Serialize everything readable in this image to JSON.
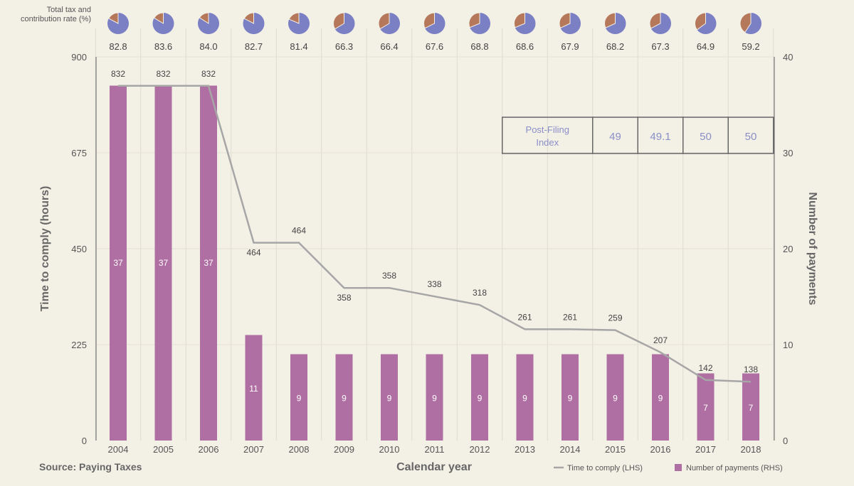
{
  "chart_data": {
    "type": "bar+line",
    "categories": [
      "2004",
      "2005",
      "2006",
      "2007",
      "2008",
      "2009",
      "2010",
      "2011",
      "2012",
      "2013",
      "2014",
      "2015",
      "2016",
      "2017",
      "2018"
    ],
    "series": [
      {
        "name": "Time to comply (LHS)",
        "type": "line",
        "axis": "left",
        "values": [
          832,
          832,
          832,
          464,
          464,
          358,
          358,
          338,
          318,
          261,
          261,
          259,
          207,
          142,
          138
        ]
      },
      {
        "name": "Number of payments (RHS)",
        "type": "bar",
        "axis": "right",
        "values": [
          37,
          37,
          37,
          11,
          9,
          9,
          9,
          9,
          9,
          9,
          9,
          9,
          9,
          7,
          7
        ]
      }
    ],
    "tax_rate": {
      "label": "Total tax and contribution rate (%)",
      "values": [
        82.8,
        83.6,
        84.0,
        82.7,
        81.4,
        66.3,
        66.4,
        67.6,
        68.8,
        68.6,
        67.9,
        68.2,
        67.3,
        64.9,
        59.2
      ]
    },
    "post_filing": {
      "label": "Post-Filing Index",
      "years": [
        "2015",
        "2016",
        "2017",
        "2018"
      ],
      "values": [
        "49",
        "49.1",
        "50",
        "50"
      ]
    },
    "xlabel": "Calendar year",
    "ylabel": "Time to comply (hours)",
    "y2label": "Number of payments",
    "ylim": [
      0,
      900
    ],
    "yticks": [
      0,
      225,
      450,
      675,
      900
    ],
    "y2lim": [
      0,
      40
    ],
    "y2ticks": [
      0,
      10,
      20,
      30,
      40
    ],
    "source": "Source: Paying Taxes",
    "legend_position": "bottom-right",
    "colors": {
      "bar": "#b06fa3",
      "line": "#a6a6a6",
      "pie_main": "#7b7fc4",
      "pie_other": "#b5785a",
      "post_filing_text": "#8a8fc8"
    }
  }
}
